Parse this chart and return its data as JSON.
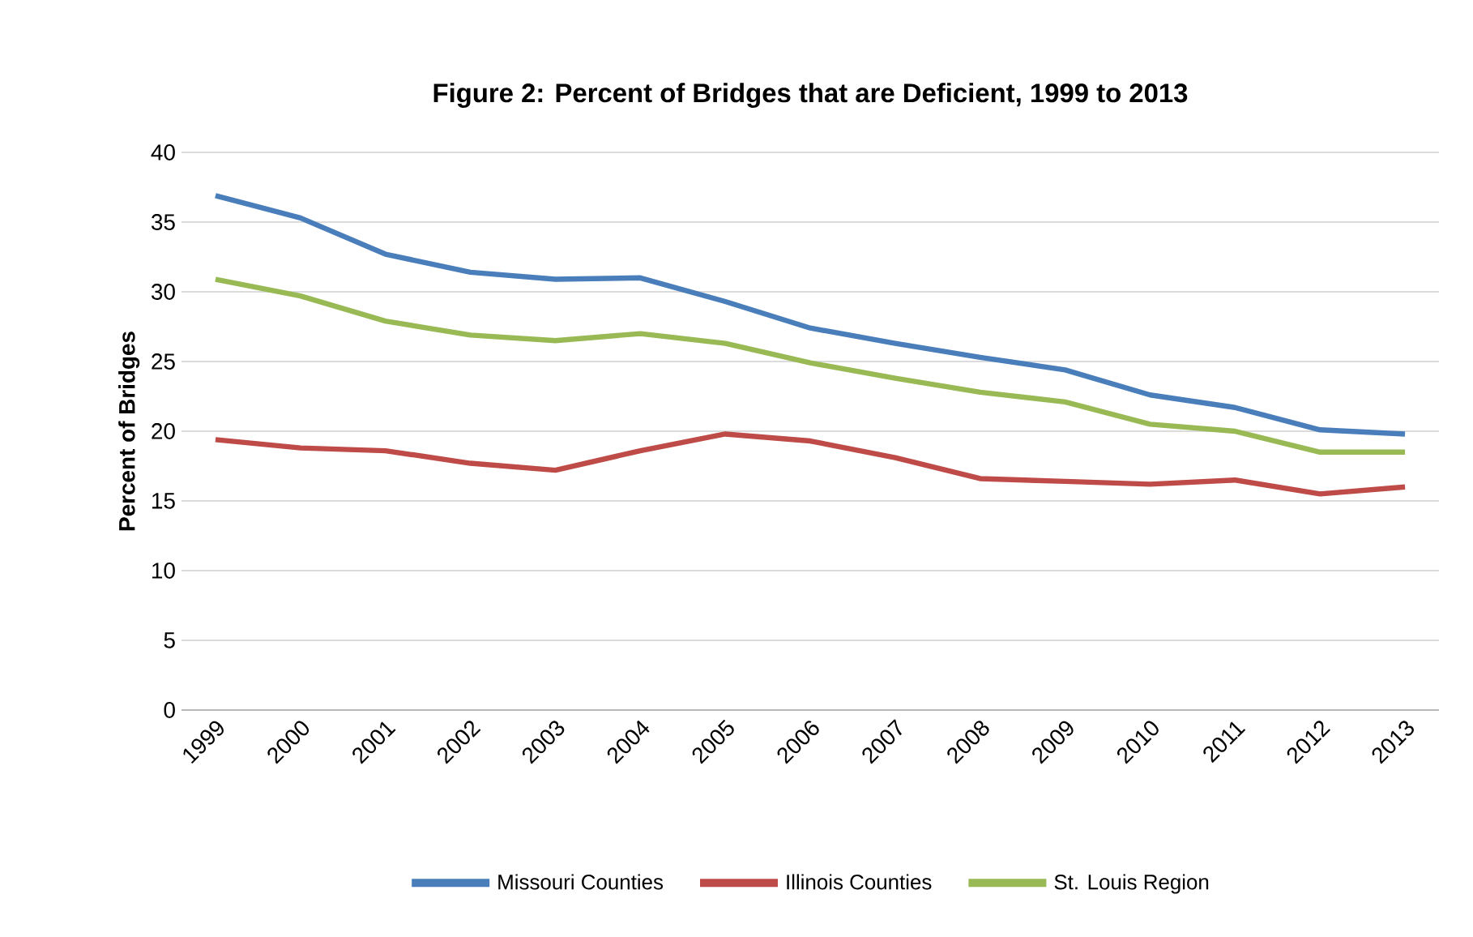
{
  "chart_data": {
    "type": "line",
    "title": "Figure 2: Percent of Bridges that are Deficient, 1999 to 2013",
    "ylabel": "Percent of Bridges",
    "categories": [
      "1999",
      "2000",
      "2001",
      "2002",
      "2003",
      "2004",
      "2005",
      "2006",
      "2007",
      "2008",
      "2009",
      "2010",
      "2011",
      "2012",
      "2013"
    ],
    "series": [
      {
        "name": "Missouri Counties",
        "color": "#4a7ebb",
        "values": [
          36.9,
          35.3,
          32.7,
          31.4,
          30.9,
          31.0,
          29.3,
          27.4,
          26.3,
          25.3,
          24.4,
          22.6,
          21.7,
          20.1,
          19.8
        ]
      },
      {
        "name": "Illinois Counties",
        "color": "#be4b48",
        "values": [
          19.4,
          18.8,
          18.6,
          17.7,
          17.2,
          18.6,
          19.8,
          19.3,
          18.1,
          16.6,
          16.4,
          16.2,
          16.5,
          15.5,
          16.0
        ]
      },
      {
        "name": "St. Louis Region",
        "color": "#98b954",
        "values": [
          30.9,
          29.7,
          27.9,
          26.9,
          26.5,
          27.0,
          26.3,
          24.9,
          23.8,
          22.8,
          22.1,
          20.5,
          20.0,
          18.5,
          18.5
        ]
      }
    ],
    "ylim": [
      0,
      40
    ],
    "yticks": [
      0,
      5,
      10,
      15,
      20,
      25,
      30,
      35,
      40
    ],
    "grid": "y",
    "legend": "bottom",
    "marker": "none",
    "line_style": "solid"
  }
}
